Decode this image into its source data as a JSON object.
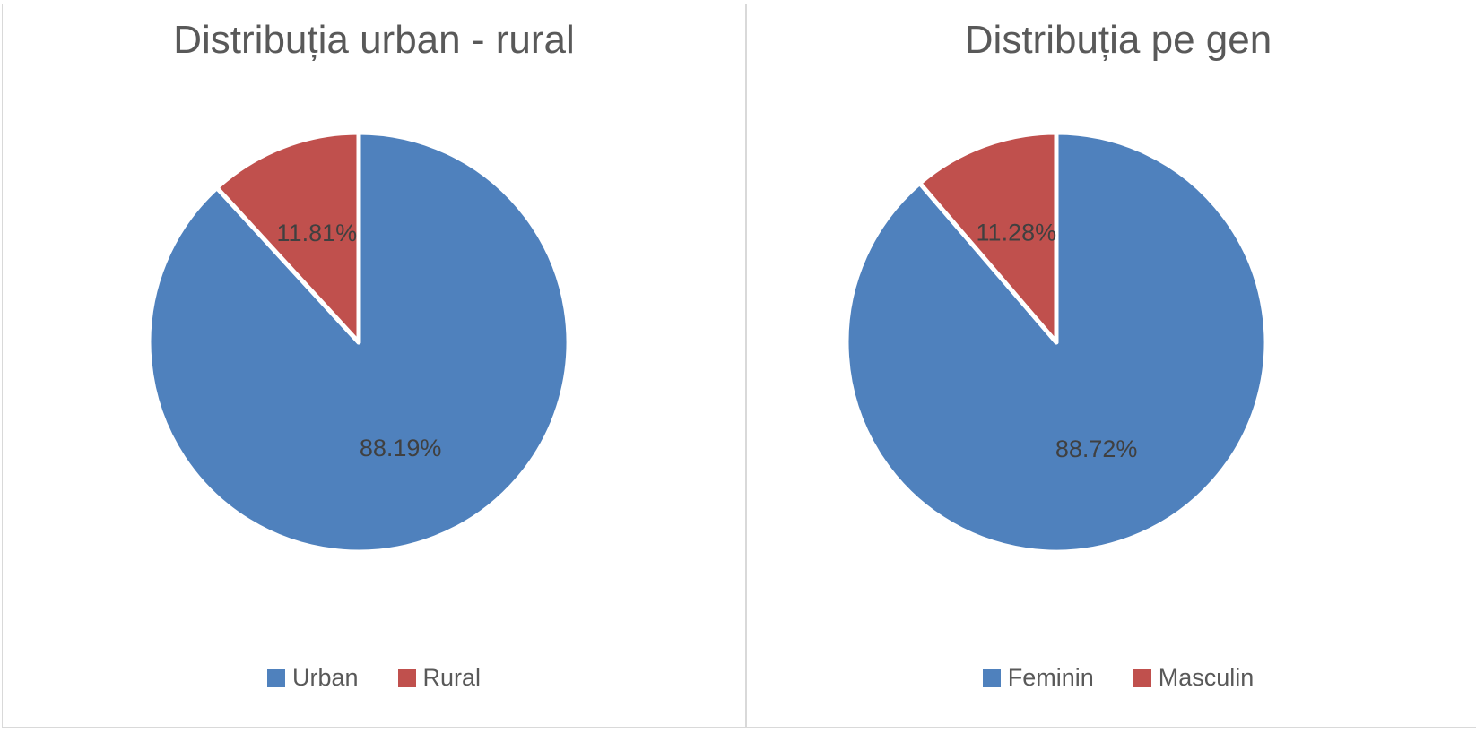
{
  "chart_data": [
    {
      "type": "pie",
      "title": "Distribuția urban - rural",
      "categories": [
        "Urban",
        "Rural"
      ],
      "values": [
        88.19,
        11.81
      ],
      "data_labels": [
        "88.19%",
        "11.81%"
      ],
      "colors": [
        "#4f81bd",
        "#c0504d"
      ],
      "legend": "bottom"
    },
    {
      "type": "pie",
      "title": "Distribuția pe gen",
      "categories": [
        "Feminin",
        "Masculin"
      ],
      "values": [
        88.72,
        11.28
      ],
      "data_labels": [
        "88.72%",
        "11.28%"
      ],
      "colors": [
        "#4f81bd",
        "#c0504d"
      ],
      "legend": "bottom"
    }
  ]
}
